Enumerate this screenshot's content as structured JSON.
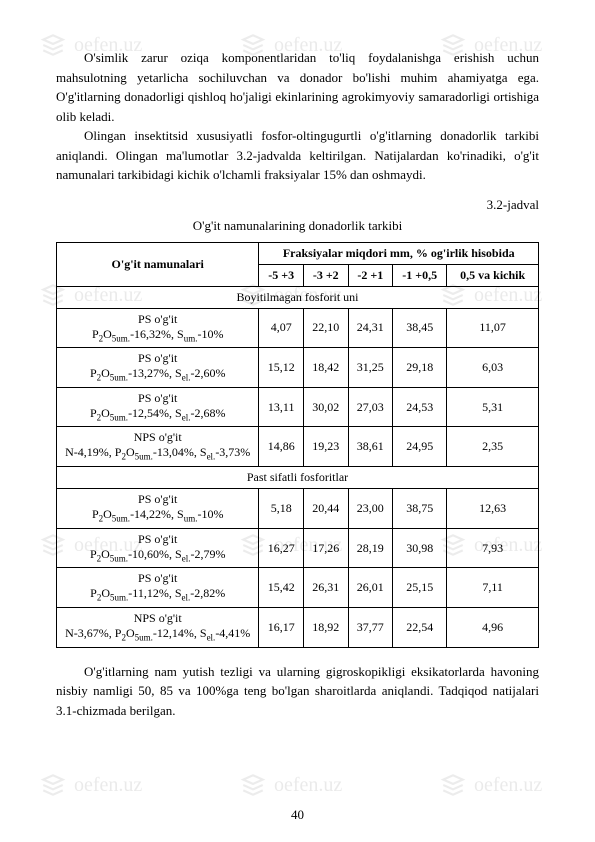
{
  "paragraphs": {
    "p1": "O'simlik zarur oziqa komponentlaridan to'liq foydalanishga erishish uchun mahsulotning yetarlicha sochiluvchan va donador bo'lishi muhim ahamiyatga ega. O'g'itlarning donadorligi qishloq ho'jaligi ekinlarining agrokimyoviy samaradorligi ortishiga olib keladi.",
    "p2": "Olingan insektitsid xususiyatli fosfor-oltingugurtli o'g'itlarning donadorlik tarkibi aniqlandi. Olingan ma'lumotlar 3.2-jadvalda keltirilgan. Natijalardan ko'rinadiki, o'g'it namunalari tarkibidagi kichik o'lchamli fraksiyalar 15% dan oshmaydi.",
    "p3": "O'g'itlarning nam yutish tezligi va ularning gigroskopikligi eksikatorlarda havoning nisbiy namligi 50, 85 va 100%ga teng bo'lgan sharoitlarda aniqlandi. Tadqiqod natijalari 3.1-chizmada berilgan."
  },
  "table_label": "3.2-jadval",
  "table_title": "O'g'it namunalarining donadorlik tarkibi",
  "table": {
    "header_main": "O'g'it namunalari",
    "header_group": "Fraksiyalar miqdori mm, % og'irlik hisobida",
    "cols": [
      "-5 +3",
      "-3 +2",
      "-2 +1",
      "-1 +0,5",
      "0,5 va kichik"
    ],
    "section1": "Boyitilmagan fosforit uni",
    "rows1": [
      {
        "name": "PS o'g'it|P₂O₅um.-16,32%, Sum.-10%",
        "v": [
          "4,07",
          "22,10",
          "24,31",
          "38,45",
          "11,07"
        ]
      },
      {
        "name": "PS o'g'it|P₂O₅um.-13,27%, Sel.-2,60%",
        "v": [
          "15,12",
          "18,42",
          "31,25",
          "29,18",
          "6,03"
        ]
      },
      {
        "name": "PS o'g'it|P₂O₅um.-12,54%, Sel.-2,68%",
        "v": [
          "13,11",
          "30,02",
          "27,03",
          "24,53",
          "5,31"
        ]
      },
      {
        "name": "NPS o'g'it|N-4,19%, P₂O₅um.-13,04%, Sel.-3,73%",
        "v": [
          "14,86",
          "19,23",
          "38,61",
          "24,95",
          "2,35"
        ]
      }
    ],
    "section2": "Past sifatli fosforitlar",
    "rows2": [
      {
        "name": "PS o'g'it|P₂O₅um.-14,22%, Sum.-10%",
        "v": [
          "5,18",
          "20,44",
          "23,00",
          "38,75",
          "12,63"
        ]
      },
      {
        "name": "PS o'g'it|P₂O₅um.-10,60%, Sel.-2,79%",
        "v": [
          "16,27",
          "17,26",
          "28,19",
          "30,98",
          "7,93"
        ]
      },
      {
        "name": "PS o'g'it|P₂O₅um.-11,12%, Sel.-2,82%",
        "v": [
          "15,42",
          "26,31",
          "26,01",
          "25,15",
          "7,11"
        ]
      },
      {
        "name": "NPS o'g'it|N-3,67%, P₂O₅um.-12,14%, Sel.-4,41%",
        "v": [
          "16,17",
          "18,92",
          "37,77",
          "22,54",
          "4,96"
        ]
      }
    ]
  },
  "page_number": "40",
  "watermark_text": "oefen.uz",
  "colors": {
    "text": "#000000",
    "watermark": "#777777",
    "background": "#ffffff"
  }
}
